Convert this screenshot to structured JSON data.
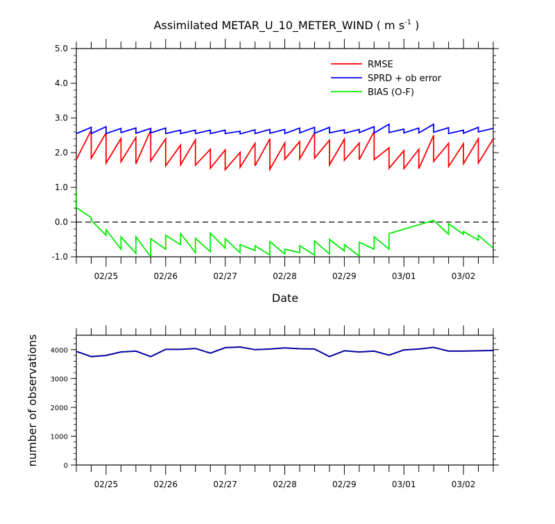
{
  "chart_data": [
    {
      "type": "line",
      "title_main": "Assimilated METAR_U_10_METER_WIND ( m s",
      "title_sup": "-1",
      "title_end": " )",
      "xlabel": "Date",
      "ylabel": "",
      "ylim": [
        -1.0,
        5.0
      ],
      "y_ticks": [
        "-1.0",
        "0.0",
        "1.0",
        "2.0",
        "3.0",
        "4.0",
        "5.0"
      ],
      "x_tick_labels": [
        "02/25",
        "02/26",
        "02/27",
        "02/28",
        "02/29",
        "03/01",
        "03/02"
      ],
      "x_range_days": [
        -0.5,
        6.5
      ],
      "zero_line": {
        "y": 0.0,
        "style": "dashed",
        "color": "#000000"
      },
      "legend": {
        "placement": "top-right"
      },
      "series": [
        {
          "name": "RMSE",
          "color": "#ff0000",
          "points": [
            [
              -0.5,
              1.8
            ],
            [
              -0.25,
              2.65
            ],
            [
              -0.25,
              1.84
            ],
            [
              0.0,
              2.57
            ],
            [
              0.0,
              1.7
            ],
            [
              0.25,
              2.41
            ],
            [
              0.25,
              1.74
            ],
            [
              0.5,
              2.44
            ],
            [
              0.5,
              1.68
            ],
            [
              0.75,
              2.65
            ],
            [
              0.75,
              1.76
            ],
            [
              1.0,
              2.4
            ],
            [
              1.0,
              1.62
            ],
            [
              1.25,
              2.22
            ],
            [
              1.25,
              1.65
            ],
            [
              1.5,
              2.37
            ],
            [
              1.5,
              1.64
            ],
            [
              1.75,
              2.1
            ],
            [
              1.75,
              1.55
            ],
            [
              2.0,
              2.08
            ],
            [
              2.0,
              1.51
            ],
            [
              2.25,
              2.01
            ],
            [
              2.25,
              1.58
            ],
            [
              2.5,
              2.27
            ],
            [
              2.5,
              1.62
            ],
            [
              2.75,
              2.4
            ],
            [
              2.75,
              1.52
            ],
            [
              3.0,
              2.28
            ],
            [
              3.0,
              1.81
            ],
            [
              3.25,
              2.32
            ],
            [
              3.25,
              1.82
            ],
            [
              3.5,
              2.57
            ],
            [
              3.5,
              1.84
            ],
            [
              3.75,
              2.36
            ],
            [
              3.75,
              1.65
            ],
            [
              4.0,
              2.39
            ],
            [
              4.0,
              1.78
            ],
            [
              4.25,
              2.28
            ],
            [
              4.25,
              1.8
            ],
            [
              4.5,
              2.61
            ],
            [
              4.5,
              1.8
            ],
            [
              4.75,
              2.14
            ],
            [
              4.75,
              1.55
            ],
            [
              5.0,
              2.06
            ],
            [
              5.0,
              1.54
            ],
            [
              5.25,
              2.1
            ],
            [
              5.25,
              1.54
            ],
            [
              5.5,
              2.5
            ],
            [
              5.5,
              1.75
            ],
            [
              5.75,
              2.27
            ],
            [
              5.75,
              1.6
            ],
            [
              6.0,
              2.26
            ],
            [
              6.0,
              1.68
            ],
            [
              6.25,
              2.4
            ],
            [
              6.25,
              1.7
            ],
            [
              6.5,
              2.4
            ]
          ]
        },
        {
          "name": "SPRD + ob error",
          "color": "#0000ff",
          "points": [
            [
              -0.5,
              2.55
            ],
            [
              -0.25,
              2.73
            ],
            [
              -0.25,
              2.55
            ],
            [
              0.0,
              2.75
            ],
            [
              0.0,
              2.55
            ],
            [
              0.25,
              2.7
            ],
            [
              0.25,
              2.58
            ],
            [
              0.5,
              2.71
            ],
            [
              0.5,
              2.56
            ],
            [
              0.75,
              2.7
            ],
            [
              0.75,
              2.57
            ],
            [
              1.0,
              2.71
            ],
            [
              1.0,
              2.55
            ],
            [
              1.25,
              2.65
            ],
            [
              1.25,
              2.55
            ],
            [
              1.5,
              2.65
            ],
            [
              1.5,
              2.55
            ],
            [
              1.75,
              2.65
            ],
            [
              1.75,
              2.55
            ],
            [
              2.0,
              2.65
            ],
            [
              2.0,
              2.55
            ],
            [
              2.25,
              2.62
            ],
            [
              2.25,
              2.54
            ],
            [
              2.5,
              2.66
            ],
            [
              2.5,
              2.55
            ],
            [
              2.75,
              2.67
            ],
            [
              2.75,
              2.56
            ],
            [
              3.0,
              2.67
            ],
            [
              3.0,
              2.55
            ],
            [
              3.25,
              2.71
            ],
            [
              3.25,
              2.57
            ],
            [
              3.5,
              2.73
            ],
            [
              3.5,
              2.56
            ],
            [
              3.75,
              2.73
            ],
            [
              3.75,
              2.57
            ],
            [
              4.0,
              2.66
            ],
            [
              4.0,
              2.56
            ],
            [
              4.25,
              2.67
            ],
            [
              4.25,
              2.58
            ],
            [
              4.5,
              2.75
            ],
            [
              4.5,
              2.57
            ],
            [
              4.75,
              2.82
            ],
            [
              4.75,
              2.58
            ],
            [
              5.0,
              2.68
            ],
            [
              5.0,
              2.57
            ],
            [
              5.25,
              2.71
            ],
            [
              5.25,
              2.57
            ],
            [
              5.5,
              2.82
            ],
            [
              5.5,
              2.59
            ],
            [
              5.75,
              2.72
            ],
            [
              5.75,
              2.55
            ],
            [
              6.0,
              2.65
            ],
            [
              6.0,
              2.56
            ],
            [
              6.25,
              2.73
            ],
            [
              6.25,
              2.6
            ],
            [
              6.5,
              2.7
            ]
          ]
        },
        {
          "name": "BIAS (O-F)",
          "color": "#00ee00",
          "points": [
            [
              -0.5,
              0.95
            ],
            [
              -0.5,
              0.42
            ],
            [
              -0.25,
              0.13
            ],
            [
              -0.25,
              0.05
            ],
            [
              0.0,
              -0.38
            ],
            [
              0.0,
              -0.22
            ],
            [
              0.25,
              -0.78
            ],
            [
              0.25,
              -0.43
            ],
            [
              0.5,
              -0.9
            ],
            [
              0.5,
              -0.42
            ],
            [
              0.75,
              -1.0
            ],
            [
              0.75,
              -0.48
            ],
            [
              1.0,
              -0.78
            ],
            [
              1.0,
              -0.38
            ],
            [
              1.25,
              -0.65
            ],
            [
              1.25,
              -0.33
            ],
            [
              1.5,
              -0.88
            ],
            [
              1.5,
              -0.47
            ],
            [
              1.75,
              -0.85
            ],
            [
              1.75,
              -0.32
            ],
            [
              2.0,
              -0.75
            ],
            [
              2.0,
              -0.48
            ],
            [
              2.25,
              -0.88
            ],
            [
              2.25,
              -0.65
            ],
            [
              2.5,
              -0.82
            ],
            [
              2.5,
              -0.68
            ],
            [
              2.75,
              -0.95
            ],
            [
              2.75,
              -0.56
            ],
            [
              3.0,
              -0.92
            ],
            [
              3.0,
              -0.78
            ],
            [
              3.25,
              -0.88
            ],
            [
              3.25,
              -0.68
            ],
            [
              3.5,
              -0.95
            ],
            [
              3.5,
              -0.54
            ],
            [
              3.75,
              -0.92
            ],
            [
              3.75,
              -0.5
            ],
            [
              4.0,
              -0.83
            ],
            [
              4.0,
              -0.65
            ],
            [
              4.25,
              -0.98
            ],
            [
              4.25,
              -0.58
            ],
            [
              4.5,
              -0.78
            ],
            [
              4.5,
              -0.42
            ],
            [
              4.75,
              -0.78
            ],
            [
              4.75,
              -0.33
            ],
            [
              5.5,
              0.05
            ],
            [
              5.75,
              -0.35
            ],
            [
              5.75,
              -0.05
            ],
            [
              6.0,
              -0.35
            ],
            [
              6.0,
              -0.27
            ],
            [
              6.25,
              -0.52
            ],
            [
              6.25,
              -0.38
            ],
            [
              6.5,
              -0.75
            ]
          ]
        }
      ]
    },
    {
      "type": "line",
      "title": "",
      "xlabel": "",
      "ylabel": "number of observations",
      "ylim": [
        0,
        4500
      ],
      "y_ticks": [
        "0",
        "1000",
        "2000",
        "3000",
        "4000"
      ],
      "x_tick_labels": [
        "02/25",
        "02/26",
        "02/27",
        "02/28",
        "02/29",
        "03/01",
        "03/02"
      ],
      "x_range_days": [
        -0.5,
        6.5
      ],
      "series": [
        {
          "color": "#000080",
          "points": [
            [
              -0.5,
              3940
            ],
            [
              -0.25,
              3760
            ],
            [
              0.0,
              3800
            ],
            [
              0.25,
              3920
            ],
            [
              0.5,
              3950
            ],
            [
              0.75,
              3760
            ],
            [
              1.0,
              4010
            ],
            [
              1.25,
              4010
            ],
            [
              1.5,
              4040
            ],
            [
              1.75,
              3880
            ],
            [
              2.0,
              4070
            ],
            [
              2.25,
              4090
            ],
            [
              2.5,
              4000
            ],
            [
              2.75,
              4020
            ],
            [
              3.0,
              4060
            ],
            [
              3.25,
              4030
            ],
            [
              3.5,
              4020
            ],
            [
              3.75,
              3760
            ],
            [
              4.0,
              3960
            ],
            [
              4.25,
              3920
            ],
            [
              4.5,
              3950
            ],
            [
              4.75,
              3810
            ],
            [
              5.0,
              3990
            ],
            [
              5.25,
              4020
            ],
            [
              5.5,
              4080
            ],
            [
              5.75,
              3950
            ],
            [
              6.0,
              3950
            ],
            [
              6.25,
              3960
            ],
            [
              6.5,
              3970
            ]
          ]
        }
      ]
    }
  ]
}
